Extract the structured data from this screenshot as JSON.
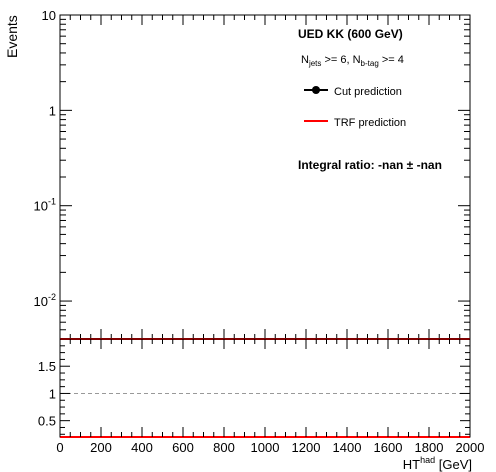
{
  "chart_data": {
    "type": "line",
    "top_panel": {
      "ylabel": "Events",
      "yscale": "log",
      "ylim": [
        0.004,
        10
      ],
      "yticks": [
        {
          "value": 10,
          "mantissa": "10",
          "exponent": ""
        },
        {
          "value": 1,
          "mantissa": "1",
          "exponent": ""
        },
        {
          "value": 0.1,
          "mantissa": "10",
          "exponent": "-1"
        },
        {
          "value": 0.01,
          "mantissa": "10",
          "exponent": "-2"
        }
      ],
      "series": [
        {
          "name": "Cut prediction",
          "color": "#000000",
          "marker": "circle",
          "values": []
        },
        {
          "name": "TRF prediction",
          "color": "#ff0000",
          "values": []
        }
      ],
      "annotations": {
        "title": "UED KK (600 GeV)",
        "selection": {
          "n1": "N",
          "s1": "jets",
          "t1": " >= 6, N",
          "s2": "b-tag",
          "t2": " >= 4"
        },
        "ratio_text": "Integral ratio: -nan ± -nan"
      },
      "legend_placement": "top-right"
    },
    "bottom_panel": {
      "ylim": [
        0.2,
        2.0
      ],
      "yticks": [
        "0.5",
        "1",
        "1.5"
      ],
      "reference_line": 1.0,
      "reference_color": "#999999",
      "ratio_color": "#ff0000"
    },
    "x": {
      "xlim": [
        0,
        2000
      ],
      "ticks": [
        "0",
        "200",
        "400",
        "600",
        "800",
        "1000",
        "1200",
        "1400",
        "1600",
        "1800",
        "2000"
      ],
      "xlabel": {
        "base": "HT",
        "sup": "had",
        "unit": " [GeV]"
      }
    }
  }
}
